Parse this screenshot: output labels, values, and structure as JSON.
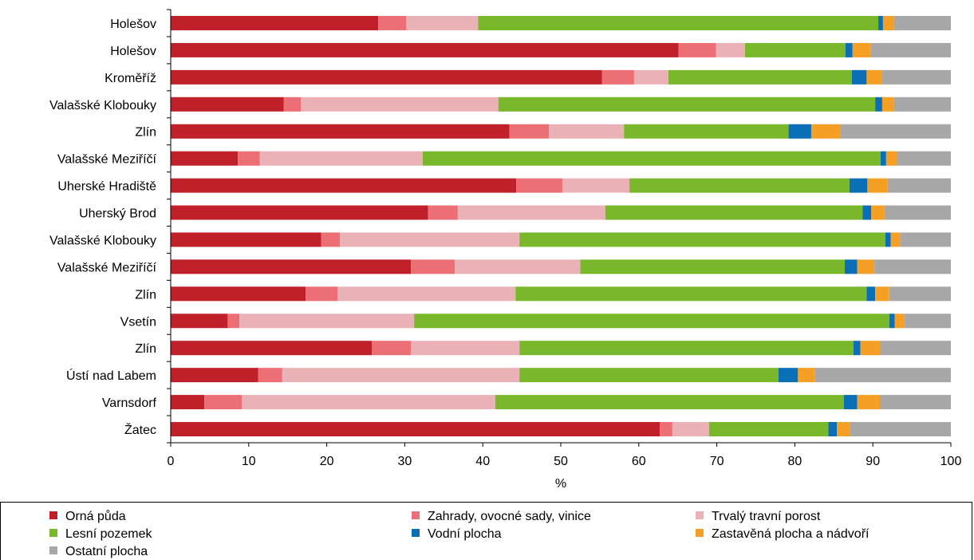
{
  "chart_data": {
    "type": "bar",
    "orientation": "horizontal",
    "stacked": true,
    "xlabel": "%",
    "xlim": [
      0,
      100
    ],
    "xticks": [
      0,
      10,
      20,
      30,
      40,
      50,
      60,
      70,
      80,
      90,
      100
    ],
    "grid": false,
    "legend_position": "bottom",
    "categories": [
      "Holešov",
      "Holešov",
      "Kroměříž",
      "Valašské Klobouky",
      "Zlín",
      "Valašské Meziříčí",
      "Uherské Hradiště",
      "Uherský Brod",
      "Valašské Klobouky",
      "Valašské Meziříčí",
      "Zlín",
      "Vsetín",
      "Zlín",
      "Ústí nad Labem",
      "Varnsdorf",
      "Žatec"
    ],
    "series": [
      {
        "name": "Orná půda",
        "color": "#c0202a",
        "values": [
          26.6,
          65.1,
          55.3,
          14.5,
          43.4,
          8.6,
          44.3,
          33.0,
          19.3,
          30.8,
          17.3,
          7.3,
          25.8,
          11.2,
          4.3,
          62.7
        ]
      },
      {
        "name": "Zahrady, ovocné sady, vinice",
        "color": "#ec6f75",
        "values": [
          3.6,
          4.8,
          4.1,
          2.2,
          5.1,
          2.8,
          5.9,
          3.8,
          2.4,
          5.6,
          4.1,
          1.5,
          5.0,
          3.1,
          4.8,
          1.6
        ]
      },
      {
        "name": "Trvalý travní porost",
        "color": "#eab2b7",
        "values": [
          9.2,
          3.7,
          4.4,
          25.3,
          9.6,
          20.9,
          8.6,
          18.9,
          23.0,
          16.1,
          22.8,
          22.4,
          13.9,
          30.4,
          32.5,
          4.7
        ]
      },
      {
        "name": "Lesní pozemek",
        "color": "#78b82a",
        "values": [
          51.3,
          12.9,
          23.5,
          48.3,
          21.1,
          58.7,
          28.2,
          33.0,
          46.9,
          33.9,
          45.0,
          60.9,
          42.8,
          33.2,
          44.7,
          15.3
        ]
      },
      {
        "name": "Vodní plocha",
        "color": "#0b6fb8",
        "values": [
          0.6,
          0.9,
          1.9,
          0.9,
          2.9,
          0.7,
          2.3,
          1.1,
          0.7,
          1.6,
          1.1,
          0.7,
          0.9,
          2.5,
          1.7,
          1.1
        ]
      },
      {
        "name": "Zastavěná plocha a nádvoří",
        "color": "#f5a024",
        "values": [
          1.4,
          2.3,
          2.0,
          1.5,
          3.7,
          1.4,
          2.6,
          1.7,
          1.2,
          2.2,
          1.8,
          1.2,
          2.6,
          2.2,
          2.9,
          1.7
        ]
      },
      {
        "name": "Ostatní plocha",
        "color": "#a7a7a7",
        "values": [
          7.3,
          10.3,
          8.8,
          7.3,
          14.2,
          6.9,
          8.1,
          8.5,
          6.5,
          9.8,
          7.9,
          6.0,
          9.0,
          17.4,
          9.1,
          12.9
        ]
      }
    ]
  }
}
